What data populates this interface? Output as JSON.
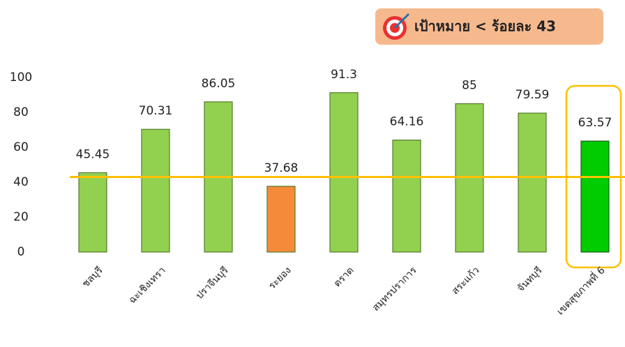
{
  "chart_data": {
    "type": "bar",
    "target_label": "เป้าหมาย < ร้อยละ 43",
    "categories": [
      "ชลบุรี",
      "ฉะเชิงเทรา",
      "ปราจีนบุรี",
      "ระยอง",
      "ตราด",
      "สมุทรปราการ",
      "สระแก้ว",
      "จันทบุรี",
      "เขตสุขภาพที่ 6"
    ],
    "values": [
      45.45,
      70.31,
      86.05,
      37.68,
      91.3,
      64.16,
      85,
      79.59,
      63.57
    ],
    "colors": [
      "#92d050",
      "#92d050",
      "#92d050",
      "#f58b3a",
      "#92d050",
      "#92d050",
      "#92d050",
      "#92d050",
      "#00cc00"
    ],
    "target": 43,
    "target_color": "#ffc000",
    "ylim": [
      0,
      100
    ],
    "yticks": [
      0,
      20,
      40,
      60,
      80,
      100
    ],
    "grid": false
  }
}
